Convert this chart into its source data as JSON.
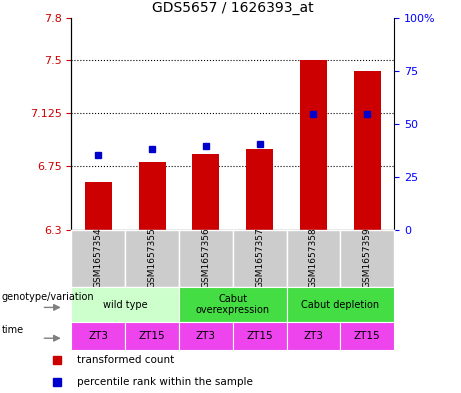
{
  "title": "GDS5657 / 1626393_at",
  "samples": [
    "GSM1657354",
    "GSM1657355",
    "GSM1657356",
    "GSM1657357",
    "GSM1657358",
    "GSM1657359"
  ],
  "red_values": [
    6.64,
    6.78,
    6.84,
    6.87,
    7.5,
    7.42
  ],
  "blue_values": [
    6.83,
    6.87,
    6.89,
    6.91,
    7.12,
    7.12
  ],
  "ylim_left": [
    6.3,
    7.8
  ],
  "ylim_right": [
    0,
    100
  ],
  "yticks_left": [
    6.3,
    6.75,
    7.125,
    7.5,
    7.8
  ],
  "ytick_labels_left": [
    "6.3",
    "6.75",
    "7.125",
    "7.5",
    "7.8"
  ],
  "yticks_right": [
    0,
    25,
    50,
    75,
    100
  ],
  "ytick_labels_right": [
    "0",
    "25",
    "50",
    "75",
    "100%"
  ],
  "hlines": [
    6.75,
    7.125,
    7.5
  ],
  "bar_bottom": 6.3,
  "bar_color": "#cc0000",
  "dot_color": "#0000cc",
  "genotype_groups": [
    {
      "label": "wild type",
      "span": [
        0,
        2
      ],
      "color": "#ccffcc"
    },
    {
      "label": "Cabut\noverexpression",
      "span": [
        2,
        4
      ],
      "color": "#44dd44"
    },
    {
      "label": "Cabut depletion",
      "span": [
        4,
        6
      ],
      "color": "#44dd44"
    }
  ],
  "time_labels": [
    "ZT3",
    "ZT15",
    "ZT3",
    "ZT15",
    "ZT3",
    "ZT15"
  ],
  "time_color": "#ee44ee",
  "cell_color": "#cccccc",
  "genotype_label": "genotype/variation",
  "time_label": "time",
  "legend_red": "transformed count",
  "legend_blue": "percentile rank within the sample"
}
